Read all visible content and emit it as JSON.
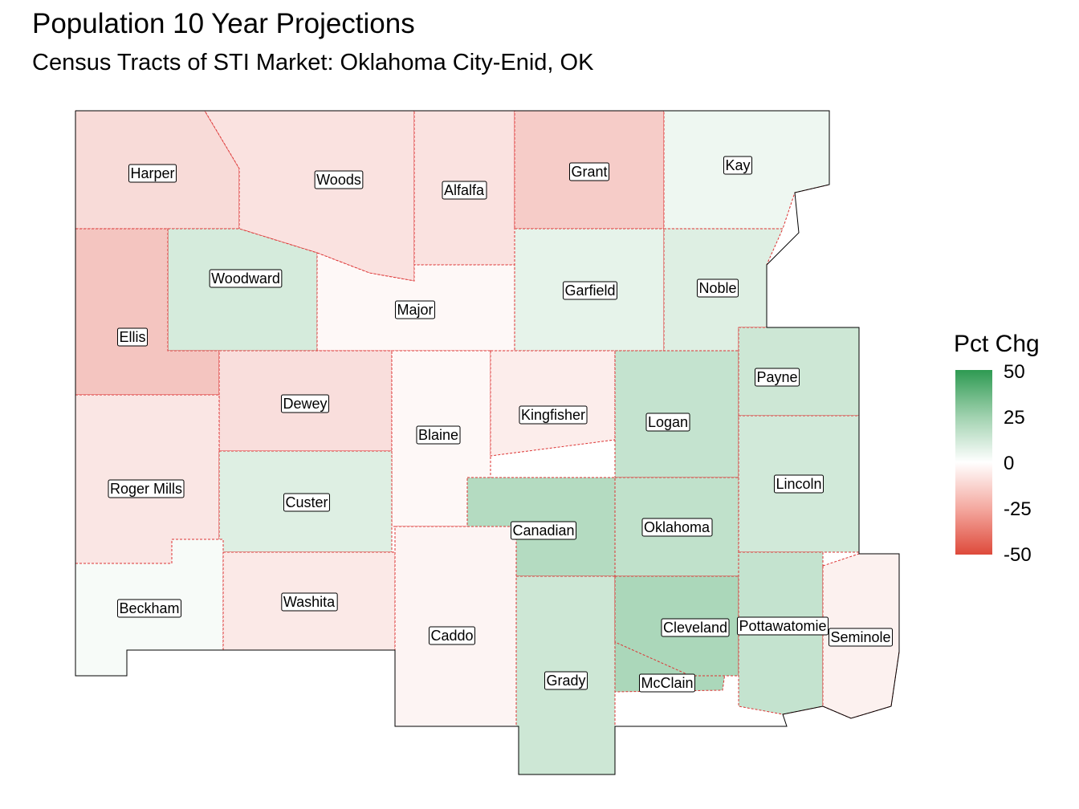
{
  "title": "Population 10 Year Projections",
  "subtitle": "Census Tracts of STI Market: Oklahoma City-Enid, OK",
  "legend": {
    "title": "Pct Chg",
    "ticks": [
      "50",
      "25",
      "0",
      "-25",
      "-50"
    ],
    "colors": {
      "high": "#2e9a52",
      "mid": "#ffffff",
      "low": "#de4a3b"
    }
  },
  "counties": [
    {
      "name": "Harper",
      "pct_change": -10
    },
    {
      "name": "Woods",
      "pct_change": -8
    },
    {
      "name": "Alfalfa",
      "pct_change": -8
    },
    {
      "name": "Grant",
      "pct_change": -14
    },
    {
      "name": "Kay",
      "pct_change": 4
    },
    {
      "name": "Woodward",
      "pct_change": 10
    },
    {
      "name": "Major",
      "pct_change": -2
    },
    {
      "name": "Garfield",
      "pct_change": 6
    },
    {
      "name": "Noble",
      "pct_change": 8
    },
    {
      "name": "Ellis",
      "pct_change": -16
    },
    {
      "name": "Dewey",
      "pct_change": -9
    },
    {
      "name": "Blaine",
      "pct_change": -2
    },
    {
      "name": "Kingfisher",
      "pct_change": -5
    },
    {
      "name": "Logan",
      "pct_change": 14
    },
    {
      "name": "Payne",
      "pct_change": 12
    },
    {
      "name": "Roger Mills",
      "pct_change": -7
    },
    {
      "name": "Custer",
      "pct_change": 8
    },
    {
      "name": "Canadian",
      "pct_change": 18
    },
    {
      "name": "Oklahoma",
      "pct_change": 15
    },
    {
      "name": "Lincoln",
      "pct_change": 11
    },
    {
      "name": "Beckham",
      "pct_change": 2
    },
    {
      "name": "Washita",
      "pct_change": -6
    },
    {
      "name": "Caddo",
      "pct_change": -3
    },
    {
      "name": "Grady",
      "pct_change": 12
    },
    {
      "name": "McClain",
      "pct_change": 20
    },
    {
      "name": "Cleveland",
      "pct_change": 20
    },
    {
      "name": "Pottawatomie",
      "pct_change": 14
    },
    {
      "name": "Seminole",
      "pct_change": -4
    }
  ]
}
